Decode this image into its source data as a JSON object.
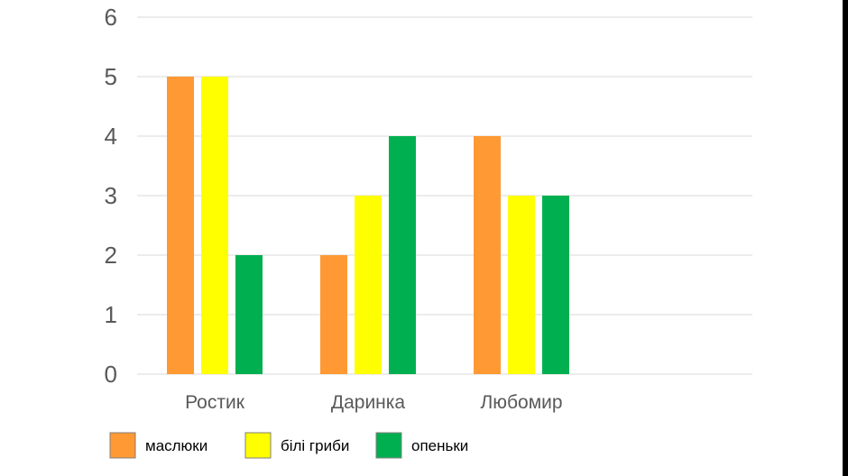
{
  "chart_data": {
    "type": "bar",
    "categories": [
      "Ростик",
      "Даринка",
      "Любомир",
      ""
    ],
    "series": [
      {
        "name": "маслюки",
        "color": "#FF9933",
        "values": [
          5,
          2,
          4,
          null
        ]
      },
      {
        "name": "білі гриби",
        "color": "#FFFF00",
        "values": [
          5,
          3,
          3,
          null
        ]
      },
      {
        "name": "опеньки",
        "color": "#00B050",
        "values": [
          2,
          4,
          3,
          null
        ]
      }
    ],
    "ylim": [
      0,
      6
    ],
    "yticks": [
      0,
      1,
      2,
      3,
      4,
      5,
      6
    ],
    "title": "",
    "xlabel": "",
    "ylabel": "",
    "grid": true,
    "legend_position": "bottom-left"
  }
}
